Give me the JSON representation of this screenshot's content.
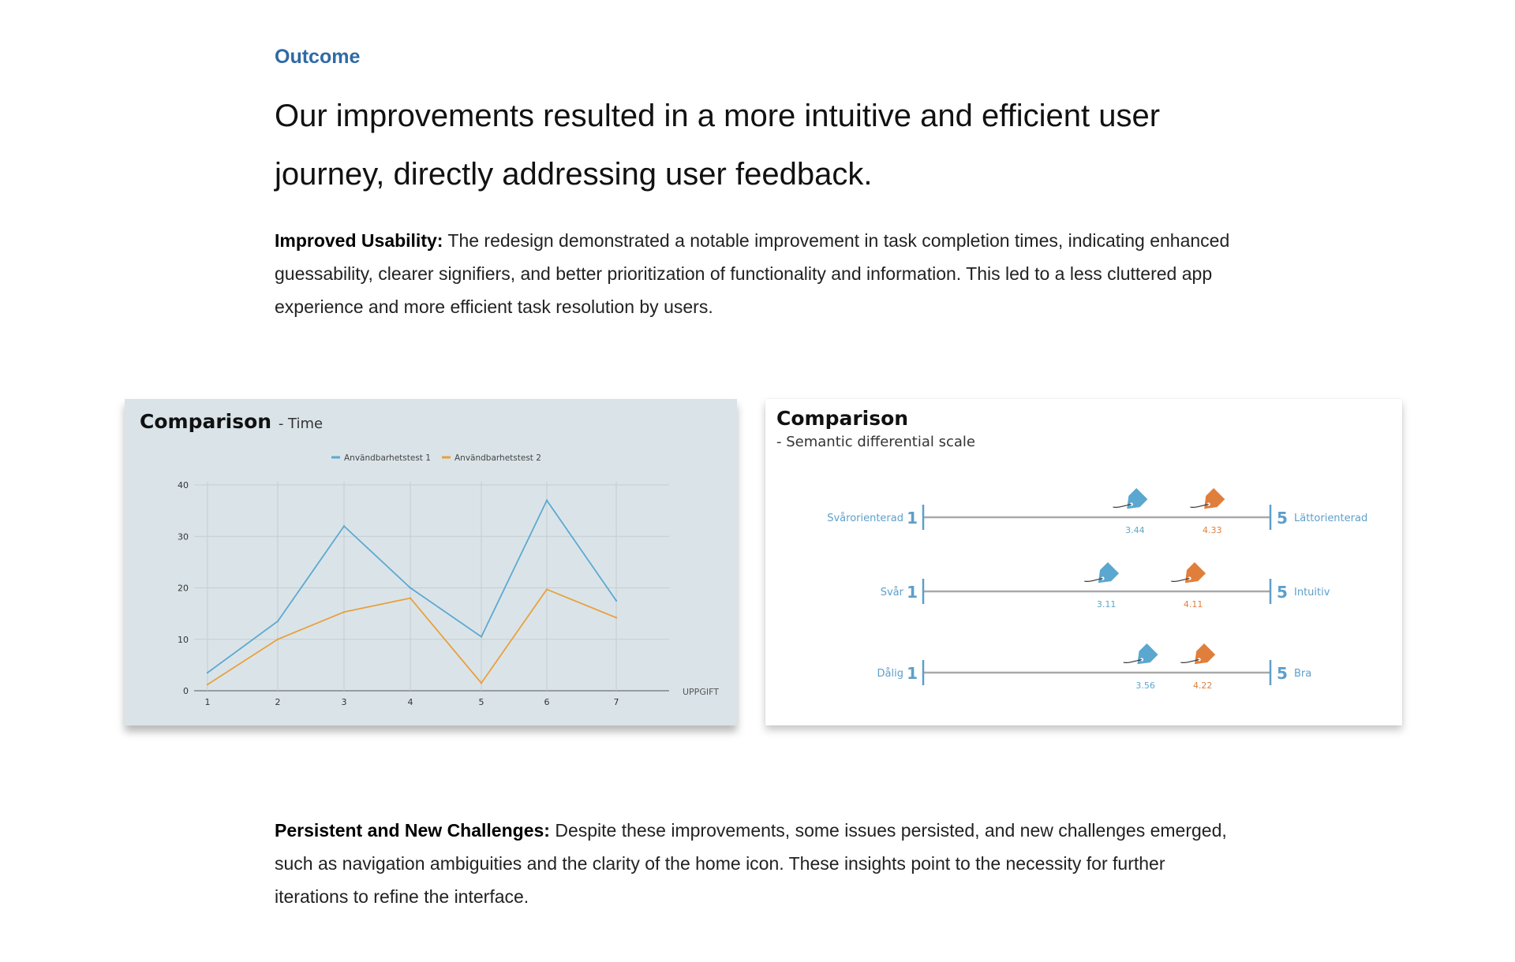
{
  "section": {
    "eyebrow": "Outcome",
    "headline": "Our improvements resulted in a more intuitive and efficient user journey, directly addressing user feedback."
  },
  "paragraphs": {
    "usability": {
      "lead": "Improved Usability:",
      "body": " The redesign demonstrated a notable improvement in task completion times, indicating enhanced guessability, clearer signifiers, and better prioritization of functionality and information. This led to a less cluttered app experience and more efficient task resolution by users."
    },
    "challenges": {
      "lead": "Persistent and New Challenges:",
      "body": " Despite these improvements, some issues persisted, and new challenges emerged, such as navigation ambiguities and the clarity of the home icon. These insights point to the necessity for further iterations to refine the interface."
    }
  },
  "colors": {
    "blue": "#5ea9d0",
    "orange": "#e88f3a",
    "accent": "#2f6aa5"
  },
  "chart_data": [
    {
      "type": "line",
      "title": "Comparison",
      "subtitle": "- Time",
      "xlabel": "UPPGIFT",
      "ylabel": "",
      "x": [
        1,
        2,
        3,
        4,
        5,
        6,
        7
      ],
      "ylim": [
        0,
        40
      ],
      "yticks": [
        0,
        10,
        20,
        30,
        40
      ],
      "grid": true,
      "legend": "top-center",
      "series": [
        {
          "name": "Användbarhetstest 1",
          "color": "#5ea9d0",
          "values": [
            3.5,
            13.5,
            32,
            20,
            10.5,
            37,
            17.5
          ]
        },
        {
          "name": "Användbarhetstest 2",
          "color": "#e8a040",
          "values": [
            1.2,
            10,
            15.3,
            18,
            1.5,
            19.7,
            14.2
          ]
        }
      ]
    },
    {
      "type": "scatter",
      "title": "Comparison",
      "subtitle": "- Semantic differential scale",
      "xlim": [
        1,
        5
      ],
      "scale_min_label": "1",
      "scale_max_label": "5",
      "rows": [
        {
          "left": "Svårorienterad",
          "right": "Lättorienterad",
          "test1": 3.44,
          "test2": 4.33,
          "label1": "3.44",
          "label2": "4.33"
        },
        {
          "left": "Svår",
          "right": "Intuitiv",
          "test1": 3.11,
          "test2": 4.11,
          "label1": "3.11",
          "label2": "4.11"
        },
        {
          "left": "Dålig",
          "right": "Bra",
          "test1": 3.56,
          "test2": 4.22,
          "label1": "3.56",
          "label2": "4.22"
        }
      ],
      "colors": {
        "test1": "#5aa7d0",
        "test2": "#e07f3c"
      }
    }
  ]
}
